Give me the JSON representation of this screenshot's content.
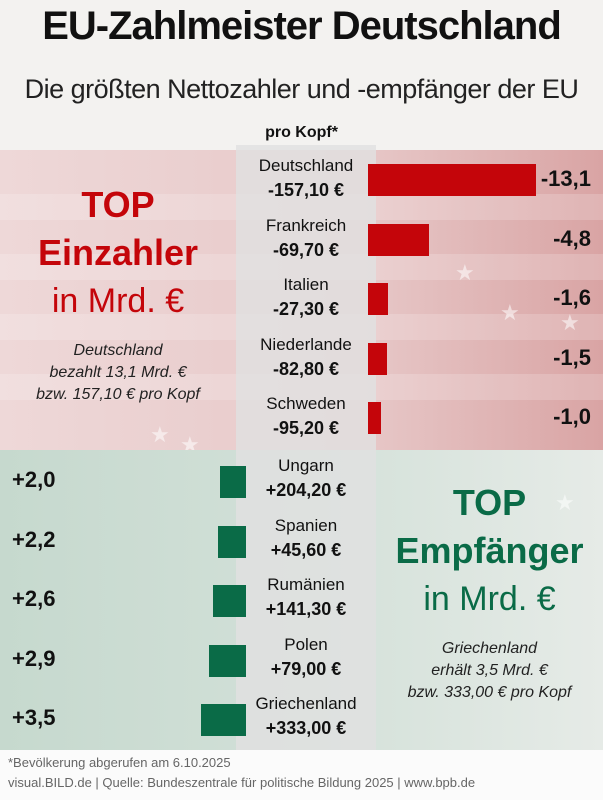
{
  "title": "EU-Zahlmeister Deutschland",
  "subtitle": "Die größten Nettozahler und -empfänger der EU",
  "per_capita_label": "pro Kopf*",
  "left_panel": {
    "line1": "TOP",
    "line2": "Einzahler",
    "line3": "in Mrd. €",
    "desc": [
      "Deutschland",
      "bezahlt 13,1 Mrd. €",
      "bzw. 157,10 € pro Kopf"
    ]
  },
  "right_panel": {
    "line1": "TOP",
    "line2": "Empfänger",
    "line3": "in Mrd. €",
    "desc": [
      "Griechenland",
      "erhält 3,5 Mrd. €",
      "bzw. 333,00 € pro Kopf"
    ]
  },
  "footnote": "*Bevölkerung abgerufen am 6.10.2025",
  "source": "visual.BILD.de | Quelle: Bundeszentrale für politische Bildung 2025 | www.bpb.de",
  "colors": {
    "payer": "#c4050a",
    "recipient": "#0a6b47"
  },
  "chart_data": {
    "type": "bar",
    "unit": "Mrd. €",
    "series": [
      {
        "name": "TOP Einzahler",
        "categories": [
          "Deutschland",
          "Frankreich",
          "Italien",
          "Niederlande",
          "Schweden"
        ],
        "values": [
          -13.1,
          -4.8,
          -1.6,
          -1.5,
          -1.0
        ],
        "labels": [
          "-13,1",
          "-4,8",
          "-1,6",
          "-1,5",
          "-1,0"
        ],
        "per_capita": [
          "-157,10 €",
          "-69,70 €",
          "-27,30 €",
          "-82,80 €",
          "-95,20 €"
        ]
      },
      {
        "name": "TOP Empfänger",
        "categories": [
          "Ungarn",
          "Spanien",
          "Rumänien",
          "Polen",
          "Griechenland"
        ],
        "values": [
          2.0,
          2.2,
          2.6,
          2.9,
          3.5
        ],
        "labels": [
          "+2,0",
          "+2,2",
          "+2,6",
          "+2,9",
          "+3,5"
        ],
        "per_capita": [
          "+204,20 €",
          "+45,60 €",
          "+141,30 €",
          "+79,00 €",
          "+333,00 €"
        ]
      }
    ]
  }
}
